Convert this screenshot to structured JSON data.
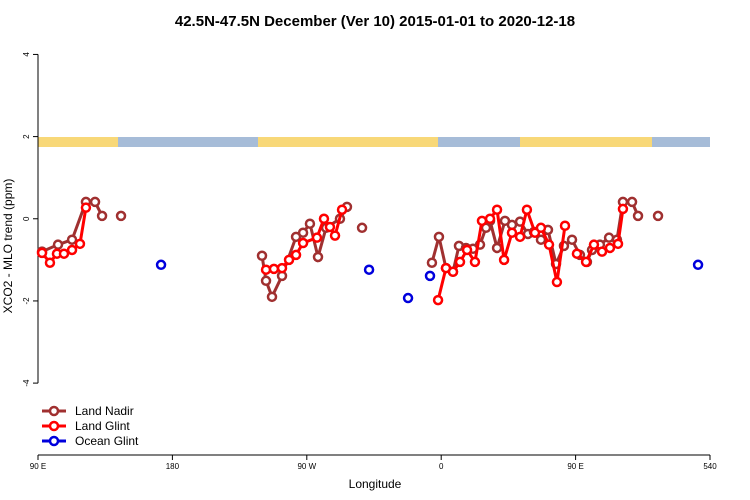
{
  "chart_data": {
    "type": "line",
    "title": "42.5N-47.5N December (Ver 10)   2015-01-01 to 2020-12-18",
    "xlabel": "Longitude",
    "ylabel": "XCO2 - MLO trend (ppm)",
    "xlim": [
      90,
      540
    ],
    "ylim": [
      -5.75,
      4.4
    ],
    "xticks": [
      {
        "value": 90,
        "label": "90 E"
      },
      180,
      {
        "value": 270,
        "label": "90 W"
      },
      {
        "value": 360,
        "label": "0"
      },
      {
        "value": 450,
        "label": "90 E"
      },
      540
    ],
    "yticks": [
      4,
      2,
      0,
      -2,
      -4
    ],
    "legend": "bottom-left",
    "series": [
      {
        "name": "Land Nadir",
        "color": "#a03030",
        "x": [
          92.7,
          103.4,
          112.8,
          122.1,
          128.2,
          132.9,
          null,
          145.6,
          null,
          240.0,
          242.7,
          246.7,
          253.4,
          262.8,
          267.5,
          272.1,
          277.5,
          282.9,
          292.2,
          296.9,
          null,
          307.0,
          null,
          353.8,
          358.5,
          363.2,
          367.9,
          371.9,
          376.6,
          381.3,
          386.0,
          390.0,
          392.7,
          397.4,
          402.7,
          407.4,
          412.8,
          418.1,
          422.1,
          426.8,
          431.5,
          436.9,
          442.2,
          447.6,
          452.9,
          457.6,
          461.0,
          466.3,
          472.4,
          477.7,
          481.7,
          487.8,
          491.8,
          null,
          505.2
        ],
        "values": [
          -0.8,
          -0.63,
          -0.51,
          0.41,
          0.41,
          0.07,
          null,
          0.07,
          null,
          -0.9,
          -1.51,
          -1.9,
          -1.39,
          -0.44,
          -0.34,
          -0.12,
          -0.93,
          -0.22,
          0,
          0.29,
          null,
          -0.22,
          null,
          -1.07,
          -0.44,
          -1.2,
          -1.29,
          -0.66,
          -0.71,
          -0.73,
          -0.63,
          -0.22,
          -0.05,
          -0.71,
          -0.05,
          -0.15,
          -0.07,
          -0.37,
          -0.32,
          -0.51,
          -0.27,
          -1.1,
          -0.66,
          -0.51,
          -0.88,
          -1.05,
          -0.76,
          -0.63,
          -0.46,
          -0.51,
          0.41,
          0.41,
          0.07,
          null,
          0.07
        ]
      },
      {
        "name": "Land Glint",
        "color": "#ff0000",
        "x": [
          92.7,
          98.0,
          102.7,
          107.4,
          112.8,
          118.1,
          122.1,
          null,
          242.7,
          248.0,
          253.4,
          258.1,
          262.8,
          267.5,
          276.8,
          281.5,
          285.5,
          288.9,
          293.6,
          null,
          357.9,
          363.2,
          367.9,
          372.6,
          377.3,
          382.6,
          387.3,
          392.7,
          397.4,
          402.1,
          407.4,
          412.8,
          417.4,
          422.8,
          426.8,
          432.2,
          437.5,
          442.9,
          null,
          450.9,
          457.0,
          462.3,
          467.7,
          473.0,
          478.4,
          481.7
        ],
        "values": [
          -0.83,
          -1.07,
          -0.85,
          -0.85,
          -0.76,
          -0.61,
          0.27,
          null,
          -1.24,
          -1.22,
          -1.2,
          -1.0,
          -0.88,
          -0.59,
          -0.46,
          0,
          -0.2,
          -0.41,
          0.22,
          null,
          -1.98,
          -1.2,
          -1.29,
          -1.05,
          -0.76,
          -1.05,
          -0.05,
          0,
          0.22,
          -1.0,
          -0.34,
          -0.44,
          0.22,
          -0.34,
          -0.22,
          -0.63,
          -1.54,
          -0.17,
          null,
          -0.85,
          -1.05,
          -0.63,
          -0.8,
          -0.71,
          -0.61,
          0.24
        ]
      },
      {
        "name": "Ocean Glint",
        "color": "#0000dd",
        "x": [
          172.4,
          null,
          311.7,
          null,
          337.8,
          null,
          352.5,
          null,
          532.0
        ],
        "values": [
          -1.12,
          null,
          -1.24,
          null,
          -1.93,
          null,
          -1.39,
          null,
          -1.12
        ]
      }
    ]
  }
}
